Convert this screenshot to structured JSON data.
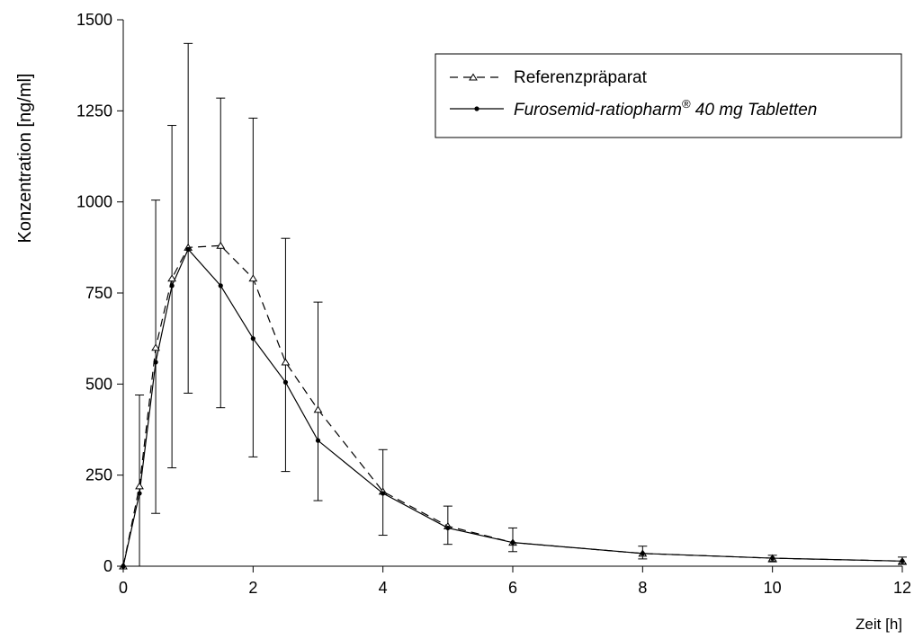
{
  "chart_data": {
    "type": "line",
    "title": "",
    "xlabel": "Zeit [h]",
    "ylabel": "Konzentration [ng/ml]",
    "xlim": [
      0,
      12
    ],
    "ylim": [
      0,
      1500
    ],
    "x_ticks": [
      0,
      2,
      4,
      6,
      8,
      10,
      12
    ],
    "y_ticks": [
      0,
      250,
      500,
      750,
      1000,
      1250,
      1500
    ],
    "grid": false,
    "legend_position": "top-right",
    "series": [
      {
        "name": "Referenzpräparat",
        "line_style": "dashed",
        "marker": "open-triangle",
        "x": [
          0,
          0.25,
          0.5,
          0.75,
          1,
          1.5,
          2,
          2.5,
          3,
          4,
          5,
          6,
          8,
          10,
          12
        ],
        "y": [
          0,
          220,
          600,
          790,
          875,
          880,
          790,
          560,
          430,
          205,
          110,
          65,
          35,
          22,
          14
        ]
      },
      {
        "name_main": "Furosemid-ratiopharm",
        "name_sup": "®",
        "name_rest": " 40 mg Tabletten",
        "line_style": "solid",
        "marker": "filled-dot",
        "x": [
          0,
          0.25,
          0.5,
          0.75,
          1,
          1.5,
          2,
          2.5,
          3,
          4,
          5,
          6,
          8,
          10,
          12
        ],
        "y": [
          0,
          200,
          560,
          770,
          870,
          770,
          625,
          505,
          345,
          200,
          105,
          65,
          35,
          22,
          14
        ],
        "error_bars": [
          {
            "x": 0.25,
            "low": 0,
            "high": 470
          },
          {
            "x": 0.5,
            "low": 145,
            "high": 1005
          },
          {
            "x": 0.75,
            "low": 270,
            "high": 1210
          },
          {
            "x": 1,
            "low": 475,
            "high": 1435
          },
          {
            "x": 1.5,
            "low": 435,
            "high": 1285
          },
          {
            "x": 2,
            "low": 300,
            "high": 1230
          },
          {
            "x": 2.5,
            "low": 260,
            "high": 900
          },
          {
            "x": 3,
            "low": 180,
            "high": 725
          },
          {
            "x": 4,
            "low": 85,
            "high": 320
          },
          {
            "x": 5,
            "low": 60,
            "high": 165
          },
          {
            "x": 6,
            "low": 40,
            "high": 105
          },
          {
            "x": 8,
            "low": 20,
            "high": 55
          },
          {
            "x": 10,
            "low": 12,
            "high": 30
          },
          {
            "x": 12,
            "low": 5,
            "high": 25
          }
        ]
      }
    ]
  }
}
